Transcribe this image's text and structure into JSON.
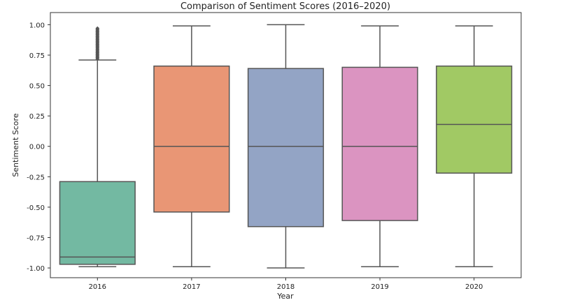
{
  "chart_data": {
    "type": "box",
    "title": "Comparison of Sentiment Scores (2016–2020)",
    "xlabel": "Year",
    "ylabel": "Sentiment Score",
    "ylim": [
      -1.08,
      1.1
    ],
    "yticks": [
      "-1.00",
      "-0.75",
      "-0.50",
      "-0.25",
      "0.00",
      "0.25",
      "0.50",
      "0.75",
      "1.00"
    ],
    "ytick_values": [
      -1.0,
      -0.75,
      -0.5,
      -0.25,
      0.0,
      0.25,
      0.5,
      0.75,
      1.0
    ],
    "grid": false,
    "categories": [
      "2016",
      "2017",
      "2018",
      "2019",
      "2020"
    ],
    "boxes": [
      {
        "category": "2016",
        "whisker_low": -0.99,
        "q1": -0.97,
        "median": -0.91,
        "q3": -0.29,
        "whisker_high": 0.71,
        "outliers": [
          0.72,
          0.73,
          0.74,
          0.75,
          0.76,
          0.77,
          0.78,
          0.79,
          0.8,
          0.81,
          0.82,
          0.83,
          0.84,
          0.85,
          0.86,
          0.87,
          0.88,
          0.89,
          0.9,
          0.91,
          0.92,
          0.93,
          0.94,
          0.95,
          0.96,
          0.97
        ],
        "color": "#73b9a2"
      },
      {
        "category": "2017",
        "whisker_low": -0.99,
        "q1": -0.54,
        "median": 0.0,
        "q3": 0.66,
        "whisker_high": 0.99,
        "outliers": [],
        "color": "#e99675"
      },
      {
        "category": "2018",
        "whisker_low": -1.0,
        "q1": -0.66,
        "median": 0.0,
        "q3": 0.64,
        "whisker_high": 1.0,
        "outliers": [],
        "color": "#93a4c5"
      },
      {
        "category": "2019",
        "whisker_low": -0.99,
        "q1": -0.61,
        "median": 0.0,
        "q3": 0.65,
        "whisker_high": 0.99,
        "outliers": [],
        "color": "#db94c1"
      },
      {
        "category": "2020",
        "whisker_low": -0.99,
        "q1": -0.22,
        "median": 0.18,
        "q3": 0.66,
        "whisker_high": 0.99,
        "outliers": [],
        "color": "#a1c964"
      }
    ],
    "line_color": "#555555"
  }
}
